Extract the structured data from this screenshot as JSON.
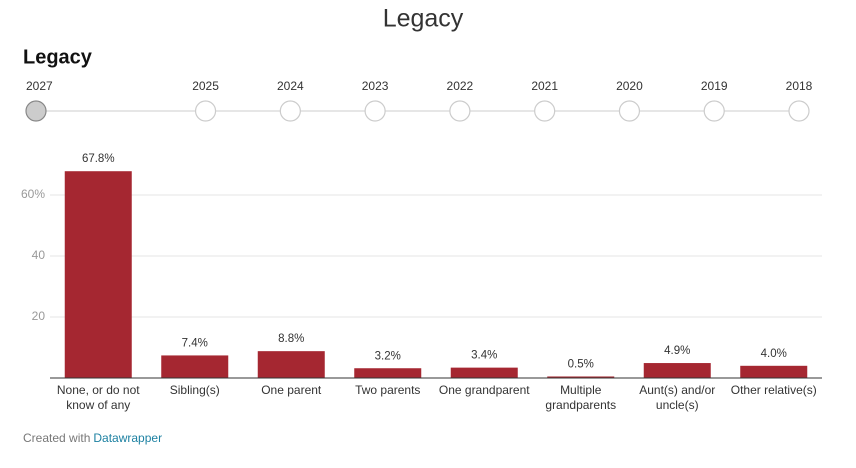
{
  "page_title": "Legacy",
  "timeline": {
    "years": [
      2027,
      2025,
      2024,
      2023,
      2022,
      2021,
      2020,
      2019,
      2018
    ],
    "selected": 0
  },
  "chart_data": {
    "type": "bar",
    "title": "Legacy",
    "categories": [
      "None, or do not know of any",
      "Sibling(s)",
      "One parent",
      "Two parents",
      "One grandparent",
      "Multiple grandparents",
      "Aunt(s) and/or uncle(s)",
      "Other relative(s)"
    ],
    "values": [
      67.8,
      7.4,
      8.8,
      3.2,
      3.4,
      0.5,
      4.9,
      4.0
    ],
    "value_labels": [
      "67.8%",
      "7.4%",
      "8.8%",
      "3.2%",
      "3.4%",
      "0.5%",
      "4.9%",
      "4.0%"
    ],
    "color": "#a52731",
    "ylim": [
      0,
      70
    ],
    "yticks": [
      20,
      40,
      {
        "value": 60,
        "label": "60%"
      }
    ],
    "grid": true
  },
  "footer": {
    "text": "Created with",
    "link": "Datawrapper"
  }
}
